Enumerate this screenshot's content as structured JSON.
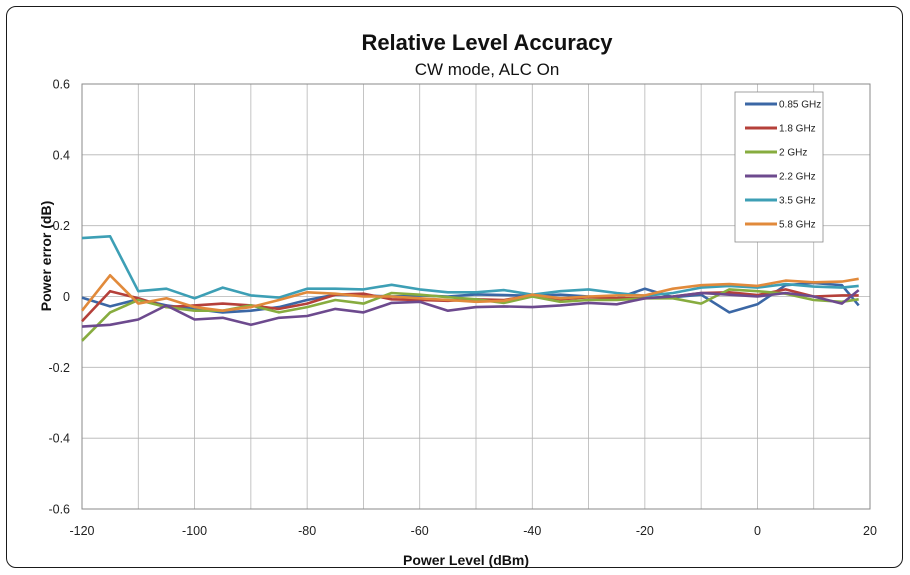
{
  "chart_data": {
    "type": "line",
    "title": "Relative Level Accuracy",
    "subtitle": "CW mode, ALC On",
    "xlabel": "Power Level (dBm)",
    "ylabel": "Power error (dB)",
    "xlim": [
      -120,
      20
    ],
    "ylim": [
      -0.6,
      0.6
    ],
    "x_ticks": [
      -120,
      -100,
      -80,
      -60,
      -40,
      -20,
      0,
      20
    ],
    "y_ticks": [
      0.6,
      0.4,
      0.2,
      0,
      -0.2,
      -0.4,
      -0.6
    ],
    "x_tick_labels": [
      "-120",
      "-100",
      "-80",
      "-60",
      "-40",
      "-20",
      "0",
      "20"
    ],
    "y_tick_labels": [
      "0.6",
      "0.4",
      "0.2",
      "0",
      "-0.2",
      "-0.4",
      "-0.6"
    ],
    "grid": true,
    "legend_position": "top-right",
    "x": [
      -120,
      -115,
      -110,
      -105,
      -100,
      -95,
      -90,
      -85,
      -80,
      -75,
      -70,
      -65,
      -60,
      -55,
      -50,
      -45,
      -40,
      -35,
      -30,
      -25,
      -20,
      -15,
      -10,
      -5,
      0,
      5,
      10,
      15,
      18
    ],
    "series": [
      {
        "name": "0.85 GHz",
        "color": "#3b67a5",
        "values": [
          -0.003,
          -0.028,
          -0.008,
          -0.025,
          -0.035,
          -0.045,
          -0.04,
          -0.03,
          -0.01,
          0.005,
          0.003,
          0.0,
          0.003,
          0.0,
          0.006,
          0.004,
          0.002,
          0.005,
          0.0,
          -0.005,
          0.022,
          -0.002,
          0.005,
          -0.045,
          -0.022,
          0.032,
          0.038,
          0.032,
          -0.025
        ]
      },
      {
        "name": "1.8 GHz",
        "color": "#b5403a",
        "values": [
          -0.07,
          0.015,
          -0.005,
          -0.03,
          -0.025,
          -0.02,
          -0.025,
          -0.035,
          -0.02,
          0.005,
          0.008,
          -0.008,
          -0.01,
          -0.012,
          -0.008,
          -0.01,
          0.003,
          -0.008,
          -0.002,
          -0.005,
          -0.005,
          0.0,
          0.01,
          0.012,
          0.004,
          0.02,
          0.0,
          0.003,
          0.003
        ]
      },
      {
        "name": "2 GHz",
        "color": "#87ac3f",
        "values": [
          -0.125,
          -0.045,
          -0.01,
          -0.03,
          -0.04,
          -0.04,
          -0.025,
          -0.045,
          -0.03,
          -0.01,
          -0.02,
          0.01,
          0.005,
          -0.002,
          -0.008,
          -0.018,
          0.0,
          -0.015,
          -0.01,
          -0.01,
          -0.005,
          -0.005,
          -0.02,
          0.02,
          0.015,
          0.008,
          -0.01,
          -0.015,
          -0.008
        ]
      },
      {
        "name": "2.2 GHz",
        "color": "#6d4a8e",
        "values": [
          -0.085,
          -0.08,
          -0.065,
          -0.025,
          -0.065,
          -0.06,
          -0.08,
          -0.06,
          -0.055,
          -0.035,
          -0.045,
          -0.018,
          -0.015,
          -0.04,
          -0.03,
          -0.028,
          -0.03,
          -0.025,
          -0.018,
          -0.022,
          -0.005,
          0.0,
          0.01,
          0.005,
          0.0,
          0.01,
          0.0,
          -0.02,
          0.018
        ]
      },
      {
        "name": "3.5 GHz",
        "color": "#3d9fb5",
        "values": [
          0.165,
          0.17,
          0.015,
          0.022,
          -0.005,
          0.025,
          0.003,
          -0.003,
          0.022,
          0.022,
          0.02,
          0.033,
          0.02,
          0.012,
          0.012,
          0.018,
          0.005,
          0.015,
          0.02,
          0.01,
          0.002,
          0.01,
          0.025,
          0.03,
          0.025,
          0.035,
          0.028,
          0.025,
          0.03
        ]
      },
      {
        "name": "5.8 GHz",
        "color": "#e18a3b",
        "values": [
          -0.04,
          0.06,
          -0.02,
          -0.005,
          -0.03,
          -0.04,
          -0.03,
          -0.01,
          0.012,
          0.008,
          0.0,
          0.0,
          -0.005,
          -0.01,
          -0.015,
          -0.012,
          0.005,
          -0.005,
          0.0,
          0.003,
          0.003,
          0.022,
          0.032,
          0.035,
          0.03,
          0.045,
          0.04,
          0.042,
          0.05
        ]
      }
    ]
  }
}
